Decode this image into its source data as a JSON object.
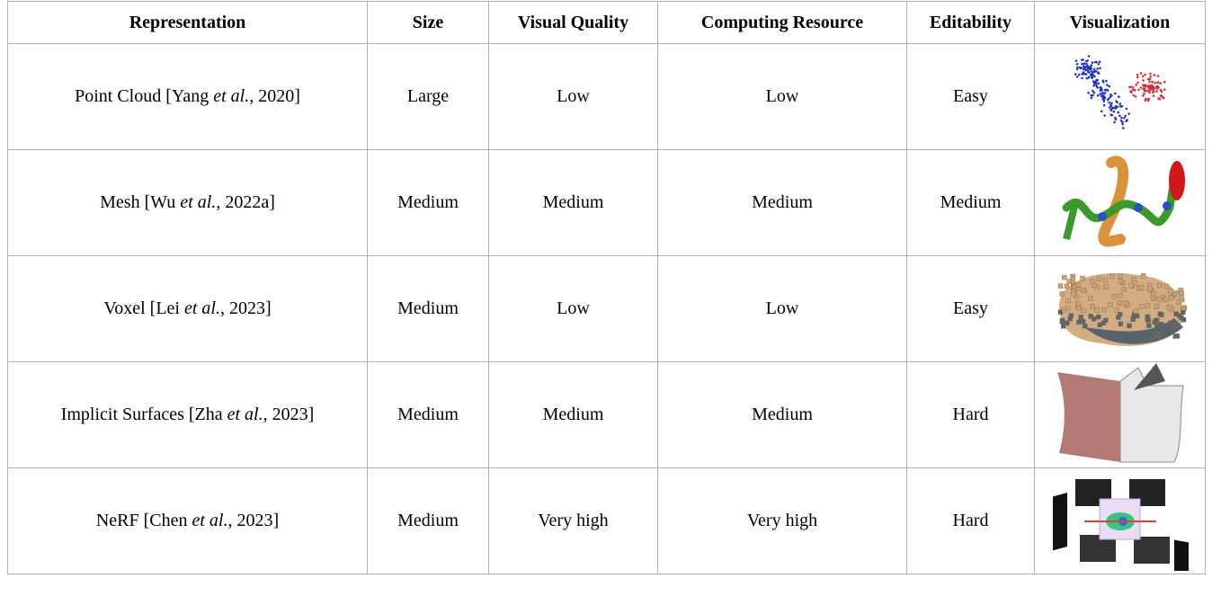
{
  "table": {
    "header": [
      "Representation",
      "Size",
      "Visual Quality",
      "Computing Resource",
      "Editability",
      "Visualization"
    ],
    "rows": [
      [
        [
          "Point Cloud [Yang ",
          "et al.",
          ", 2020]"
        ],
        "Large",
        "Low",
        "Low",
        "Easy"
      ],
      [
        [
          "Mesh [Wu ",
          "et al.",
          ", 2022a]"
        ],
        "Medium",
        "Medium",
        "Medium",
        "Medium"
      ],
      [
        [
          "Voxel [Lei ",
          "et al.",
          ", 2023]"
        ],
        "Medium",
        "Low",
        "Low",
        "Easy"
      ],
      [
        [
          "Implicit Surfaces [Zha ",
          "et al.",
          ", 2023]"
        ],
        "Medium",
        "Medium",
        "Medium",
        "Hard"
      ],
      [
        [
          "NeRF [Chen ",
          "et al.",
          ", 2023]"
        ],
        "Medium",
        "Very high",
        "Very high",
        "Hard"
      ]
    ]
  }
}
